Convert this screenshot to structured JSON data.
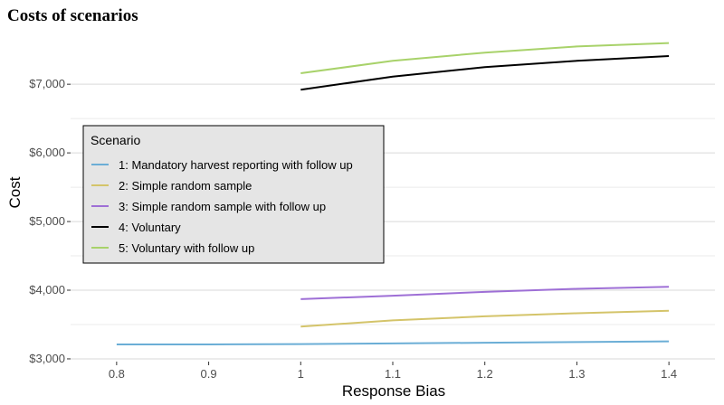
{
  "chart_data": {
    "type": "line",
    "title": "Costs of scenarios",
    "xlabel": "Response Bias",
    "ylabel": "Cost",
    "xlim": [
      0.75,
      1.45
    ],
    "ylim": [
      2960,
      7700
    ],
    "x_ticks": [
      0.8,
      0.9,
      1.0,
      1.1,
      1.2,
      1.3,
      1.4
    ],
    "x_tick_labels": [
      "0.8",
      "0.9",
      "1",
      "1.1",
      "1.2",
      "1.3",
      "1.4"
    ],
    "y_ticks": [
      3000,
      4000,
      5000,
      6000,
      7000
    ],
    "y_tick_labels": [
      "$3,000",
      "$4,000",
      "$5,000",
      "$6,000",
      "$7,000"
    ],
    "grid": true,
    "legend": {
      "title": "Scenario",
      "position": "left"
    },
    "series": [
      {
        "name": "1: Mandatory harvest reporting with follow up",
        "color": "#6baed6",
        "x": [
          0.8,
          0.9,
          1.0,
          1.1,
          1.2,
          1.3,
          1.4
        ],
        "values": [
          3210,
          3210,
          3215,
          3225,
          3235,
          3245,
          3255
        ]
      },
      {
        "name": "2: Simple random sample",
        "color": "#d4c46a",
        "x": [
          1.0,
          1.1,
          1.2,
          1.3,
          1.4
        ],
        "values": [
          3470,
          3560,
          3620,
          3665,
          3700
        ]
      },
      {
        "name": "3: Simple random sample with follow up",
        "color": "#9e6fd6",
        "x": [
          1.0,
          1.1,
          1.2,
          1.3,
          1.4
        ],
        "values": [
          3870,
          3920,
          3975,
          4020,
          4050
        ]
      },
      {
        "name": "4: Voluntary",
        "color": "#000000",
        "x": [
          1.0,
          1.1,
          1.2,
          1.3,
          1.4
        ],
        "values": [
          6920,
          7110,
          7250,
          7340,
          7410
        ]
      },
      {
        "name": "5: Voluntary with follow up",
        "color": "#a8d26a",
        "x": [
          1.0,
          1.1,
          1.2,
          1.3,
          1.4
        ],
        "values": [
          7160,
          7340,
          7460,
          7550,
          7600
        ]
      }
    ]
  }
}
